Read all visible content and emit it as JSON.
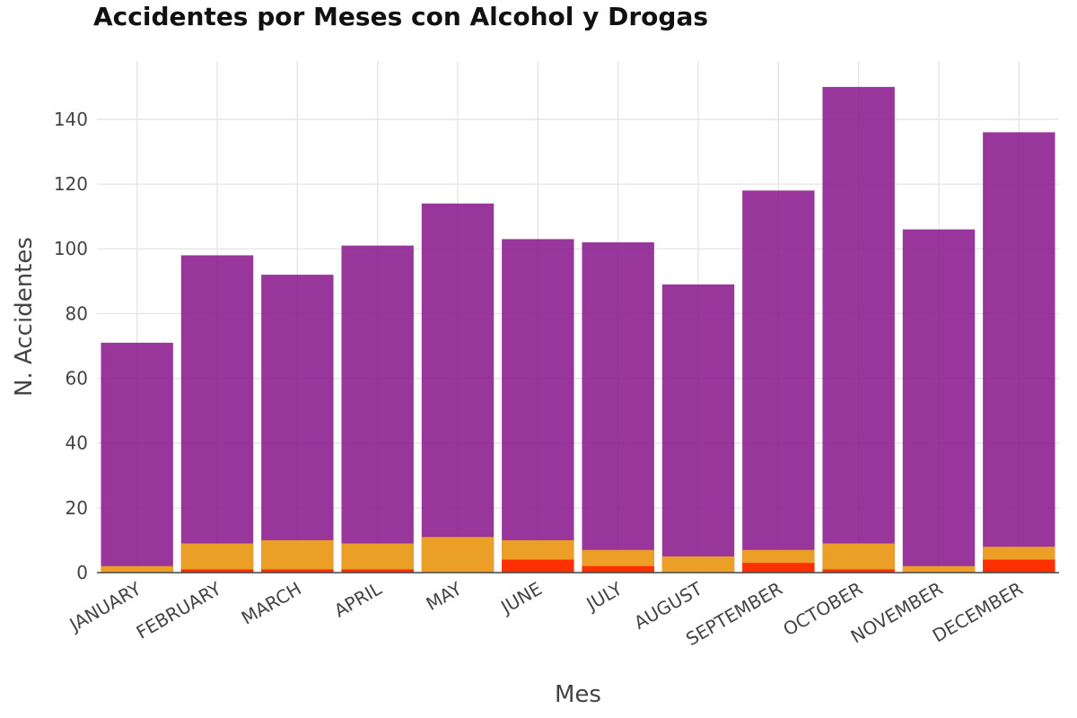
{
  "chart_data": {
    "type": "bar",
    "barmode": "overlay",
    "title": "Accidentes por Meses con Alcohol y Drogas",
    "xlabel": "Mes",
    "ylabel": "N. Accidentes",
    "categories": [
      "JANUARY",
      "FEBRUARY",
      "MARCH",
      "APRIL",
      "MAY",
      "JUNE",
      "JULY",
      "AUGUST",
      "SEPTEMBER",
      "OCTOBER",
      "NOVEMBER",
      "DECEMBER"
    ],
    "yticks": [
      0,
      20,
      40,
      60,
      80,
      100,
      120,
      140
    ],
    "ylim": [
      0,
      158
    ],
    "grid": true,
    "legend": "none",
    "series": [
      {
        "color": "#8B1A8E",
        "values": [
          71,
          98,
          92,
          101,
          114,
          103,
          102,
          89,
          118,
          150,
          106,
          136
        ]
      },
      {
        "color": "#EFA520",
        "values": [
          2,
          9,
          10,
          9,
          11,
          10,
          7,
          5,
          7,
          9,
          2,
          8
        ]
      },
      {
        "color": "#FF2A00",
        "values": [
          0,
          1,
          1,
          1,
          0,
          4,
          2,
          0,
          3,
          1,
          0,
          4
        ]
      }
    ]
  }
}
